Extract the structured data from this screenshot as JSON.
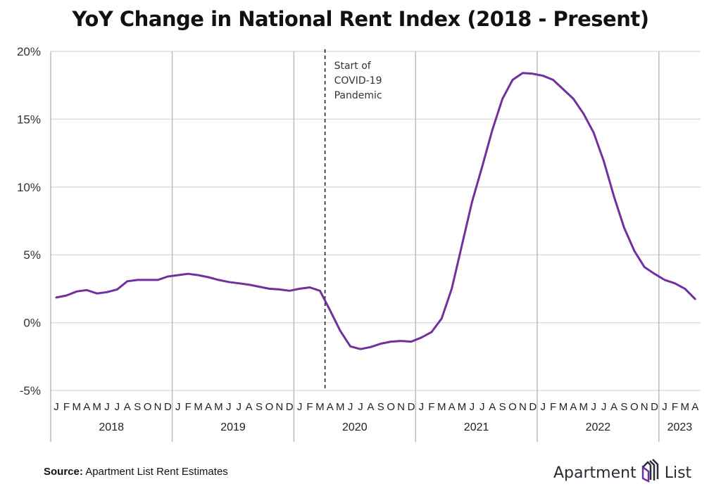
{
  "title": "YoY Change in National Rent Index (2018 - Present)",
  "footer": {
    "source_label": "Source:",
    "source_text": "Apartment List Rent Estimates",
    "brand_left": "Apartment",
    "brand_right": "List",
    "brand_icon": "apartment-list-logo-icon"
  },
  "colors": {
    "line": "#7030a0",
    "grid": "#dddddd",
    "year_divider": "#bbbbbb",
    "annotation_line": "#222222"
  },
  "chart_data": {
    "type": "line",
    "title": "YoY Change in National Rent Index (2018 - Present)",
    "xlabel": "",
    "ylabel": "",
    "ylim": [
      -5,
      20
    ],
    "yticks": [
      20,
      15,
      10,
      5,
      0,
      -5
    ],
    "ytick_labels": [
      "20%",
      "15%",
      "10%",
      "5%",
      "0%",
      "-5%"
    ],
    "grid": true,
    "legend": "none",
    "years": [
      {
        "label": "2018",
        "months": 12
      },
      {
        "label": "2019",
        "months": 12
      },
      {
        "label": "2020",
        "months": 12
      },
      {
        "label": "2021",
        "months": 12
      },
      {
        "label": "2022",
        "months": 12
      },
      {
        "label": "2023",
        "months": 4
      }
    ],
    "month_labels": [
      "J",
      "F",
      "M",
      "A",
      "M",
      "J",
      "J",
      "A",
      "S",
      "O",
      "N",
      "D"
    ],
    "annotation": {
      "text_lines": [
        "Start of",
        "COVID-19",
        "Pandemic"
      ],
      "x_index": 26.5,
      "style": "dashed-vertical"
    },
    "series": [
      {
        "name": "YoY Change in National Rent Index",
        "values": [
          1.85,
          2.0,
          2.3,
          2.4,
          2.15,
          2.25,
          2.45,
          3.05,
          3.15,
          3.15,
          3.15,
          3.4,
          3.5,
          3.6,
          3.5,
          3.35,
          3.15,
          3.0,
          2.9,
          2.8,
          2.65,
          2.5,
          2.45,
          2.35,
          2.5,
          2.6,
          2.35,
          0.9,
          -0.6,
          -1.75,
          -1.95,
          -1.8,
          -1.55,
          -1.4,
          -1.35,
          -1.4,
          -1.1,
          -0.7,
          0.3,
          2.5,
          5.7,
          8.9,
          11.5,
          14.2,
          16.5,
          17.9,
          18.4,
          18.35,
          18.2,
          17.9,
          17.2,
          16.5,
          15.4,
          14.0,
          11.9,
          9.3,
          7.0,
          5.3,
          4.1,
          3.6,
          3.15,
          2.9,
          2.5,
          1.75
        ]
      }
    ]
  }
}
